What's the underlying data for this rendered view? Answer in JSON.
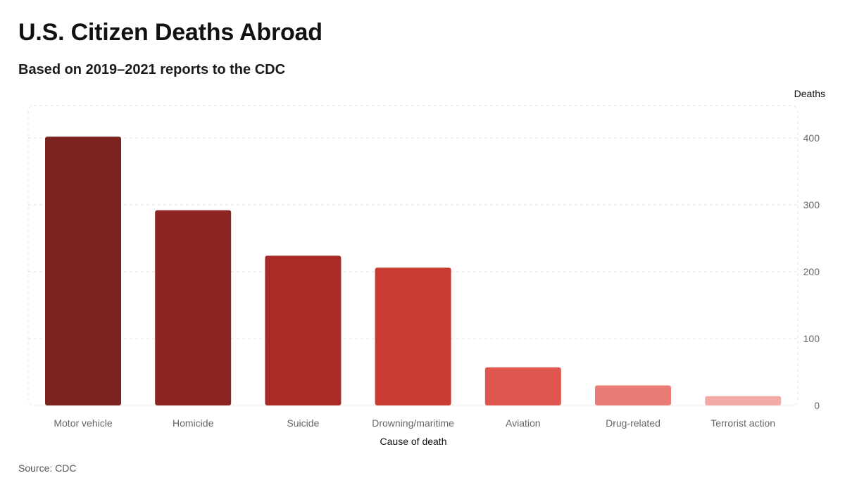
{
  "header": {
    "title": "U.S. Citizen Deaths Abroad",
    "subtitle": "Based on 2019–2021 reports to the CDC"
  },
  "footer": {
    "source": "Source: CDC"
  },
  "colors": {
    "bars": [
      "#7a2321",
      "#8c2622",
      "#a92b27",
      "#c93a31",
      "#de564d",
      "#e97c76",
      "#f2aaa5"
    ],
    "grid": "#e2e2e2",
    "tick_text": "#666666"
  },
  "chart_data": {
    "type": "bar",
    "title": "U.S. Citizen Deaths Abroad",
    "subtitle": "Based on 2019–2021 reports to the CDC",
    "xlabel": "Cause of death",
    "ylabel": "Deaths",
    "categories": [
      "Motor vehicle",
      "Homicide",
      "Suicide",
      "Drowning/maritime",
      "Aviation",
      "Drug-related",
      "Terrorist action"
    ],
    "values": [
      402,
      292,
      224,
      206,
      57,
      30,
      14
    ],
    "ylim": [
      0,
      450
    ],
    "yticks": [
      0,
      100,
      200,
      300,
      400
    ],
    "y_axis_position": "right",
    "grid": true
  }
}
